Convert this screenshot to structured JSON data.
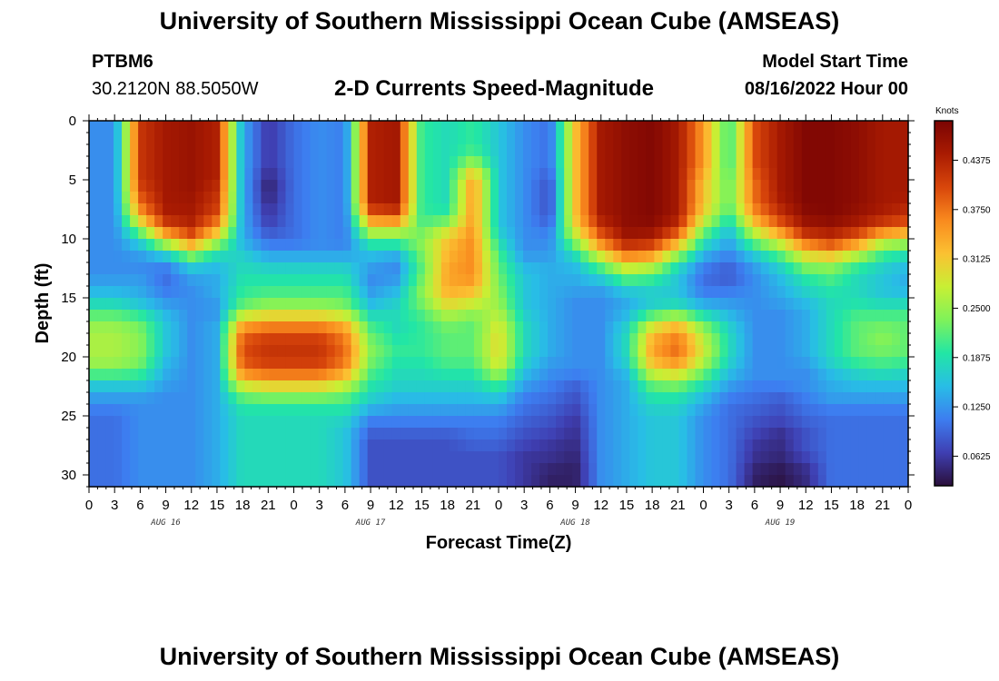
{
  "header": {
    "title": "University of Southern Mississippi Ocean Cube (AMSEAS)",
    "station_id": "PTBM6",
    "coordinates": "30.2120N  88.5050W",
    "subtitle": "2-D Currents Speed-Magnitude",
    "model_start_label": "Model Start Time",
    "model_start_value": "08/16/2022 Hour 00"
  },
  "footer": {
    "title": "University of Southern Mississippi Ocean Cube (AMSEAS)"
  },
  "colors": {
    "background": "#ffffff",
    "colormap": [
      "#2a0f3a",
      "#3f3fb2",
      "#3d7df0",
      "#28bde6",
      "#22e6a5",
      "#7ff25a",
      "#c8ef34",
      "#fbc132",
      "#f98a1e",
      "#d8460b",
      "#a91b02",
      "#7a0403"
    ]
  },
  "chart_data": {
    "type": "heatmap",
    "title": "2-D Currents Speed-Magnitude",
    "xlabel": "Forecast Time(Z)",
    "ylabel": "Depth (ft)",
    "x_range_hours": [
      0,
      96
    ],
    "y_range_ft": [
      0,
      31
    ],
    "y_ticks": [
      "0",
      "5",
      "10",
      "15",
      "20",
      "25",
      "30"
    ],
    "x_tick_labels": [
      "0",
      "3",
      "6",
      "9",
      "12",
      "15",
      "18",
      "21",
      "0",
      "3",
      "6",
      "9",
      "12",
      "15",
      "18",
      "21",
      "0",
      "3",
      "6",
      "9",
      "12",
      "15",
      "18",
      "21",
      "0",
      "3",
      "6",
      "9",
      "12",
      "15",
      "18",
      "21",
      "0"
    ],
    "date_labels": [
      "AUG 16",
      "AUG 17",
      "AUG 18",
      "AUG 19"
    ],
    "colorbar": {
      "label": "Knots",
      "range": [
        0.025,
        0.4875
      ],
      "tick_labels": [
        "0.4375",
        "0.3750",
        "0.3125",
        "0.2500",
        "0.1875",
        "0.1250",
        "0.0625"
      ]
    },
    "depth_levels_ft": [
      0,
      1,
      2,
      3,
      4,
      5,
      6,
      7,
      8,
      9,
      10,
      11,
      12,
      13,
      14,
      15,
      16,
      17,
      18,
      19,
      20,
      21,
      22,
      23,
      24,
      25,
      26,
      27,
      28,
      29,
      30,
      31
    ],
    "time_hours": [
      0,
      3,
      6,
      9,
      12,
      15,
      18,
      21,
      24,
      27,
      30,
      33,
      36,
      39,
      42,
      45,
      48,
      51,
      54,
      57,
      60,
      63,
      66,
      69,
      72,
      75,
      78,
      81,
      84,
      87,
      90,
      93,
      96
    ],
    "speed_knots": [
      [
        0.12,
        0.12,
        0.42,
        0.45,
        0.46,
        0.44,
        0.14,
        0.06,
        0.1,
        0.12,
        0.11,
        0.44,
        0.45,
        0.2,
        0.18,
        0.2,
        0.16,
        0.12,
        0.1,
        0.32,
        0.45,
        0.47,
        0.48,
        0.45,
        0.35,
        0.2,
        0.4,
        0.45,
        0.48,
        0.48,
        0.47,
        0.45,
        0.45
      ],
      [
        0.12,
        0.12,
        0.42,
        0.45,
        0.46,
        0.44,
        0.14,
        0.06,
        0.1,
        0.12,
        0.11,
        0.44,
        0.45,
        0.2,
        0.18,
        0.2,
        0.16,
        0.12,
        0.1,
        0.32,
        0.45,
        0.47,
        0.48,
        0.45,
        0.35,
        0.2,
        0.4,
        0.45,
        0.48,
        0.48,
        0.47,
        0.45,
        0.45
      ],
      [
        0.12,
        0.12,
        0.42,
        0.45,
        0.46,
        0.44,
        0.14,
        0.06,
        0.1,
        0.12,
        0.11,
        0.44,
        0.45,
        0.2,
        0.18,
        0.2,
        0.16,
        0.12,
        0.1,
        0.32,
        0.45,
        0.47,
        0.48,
        0.45,
        0.35,
        0.2,
        0.4,
        0.45,
        0.48,
        0.48,
        0.47,
        0.45,
        0.45
      ],
      [
        0.12,
        0.12,
        0.42,
        0.45,
        0.46,
        0.44,
        0.14,
        0.06,
        0.1,
        0.12,
        0.11,
        0.44,
        0.45,
        0.2,
        0.18,
        0.22,
        0.16,
        0.12,
        0.1,
        0.32,
        0.45,
        0.47,
        0.48,
        0.45,
        0.35,
        0.2,
        0.4,
        0.45,
        0.48,
        0.48,
        0.47,
        0.45,
        0.45
      ],
      [
        0.12,
        0.12,
        0.42,
        0.45,
        0.46,
        0.44,
        0.14,
        0.06,
        0.1,
        0.12,
        0.11,
        0.44,
        0.45,
        0.2,
        0.18,
        0.28,
        0.16,
        0.12,
        0.1,
        0.32,
        0.45,
        0.47,
        0.48,
        0.45,
        0.35,
        0.2,
        0.4,
        0.45,
        0.48,
        0.48,
        0.47,
        0.45,
        0.45
      ],
      [
        0.12,
        0.12,
        0.42,
        0.45,
        0.46,
        0.44,
        0.14,
        0.04,
        0.1,
        0.12,
        0.11,
        0.44,
        0.45,
        0.2,
        0.18,
        0.35,
        0.16,
        0.12,
        0.08,
        0.32,
        0.45,
        0.47,
        0.48,
        0.45,
        0.32,
        0.22,
        0.38,
        0.45,
        0.48,
        0.48,
        0.47,
        0.45,
        0.45
      ],
      [
        0.12,
        0.12,
        0.4,
        0.45,
        0.46,
        0.42,
        0.14,
        0.04,
        0.1,
        0.12,
        0.11,
        0.44,
        0.45,
        0.2,
        0.18,
        0.35,
        0.16,
        0.12,
        0.08,
        0.32,
        0.45,
        0.47,
        0.48,
        0.45,
        0.32,
        0.22,
        0.38,
        0.45,
        0.48,
        0.48,
        0.47,
        0.45,
        0.45
      ],
      [
        0.12,
        0.12,
        0.38,
        0.45,
        0.45,
        0.42,
        0.14,
        0.05,
        0.1,
        0.12,
        0.11,
        0.44,
        0.45,
        0.2,
        0.18,
        0.35,
        0.16,
        0.12,
        0.08,
        0.32,
        0.45,
        0.47,
        0.48,
        0.45,
        0.32,
        0.22,
        0.38,
        0.44,
        0.48,
        0.48,
        0.47,
        0.45,
        0.44
      ],
      [
        0.12,
        0.12,
        0.34,
        0.44,
        0.45,
        0.4,
        0.14,
        0.06,
        0.1,
        0.12,
        0.11,
        0.38,
        0.4,
        0.2,
        0.2,
        0.35,
        0.16,
        0.12,
        0.08,
        0.32,
        0.45,
        0.47,
        0.48,
        0.45,
        0.3,
        0.2,
        0.35,
        0.42,
        0.47,
        0.48,
        0.46,
        0.44,
        0.42
      ],
      [
        0.12,
        0.12,
        0.26,
        0.4,
        0.43,
        0.35,
        0.14,
        0.07,
        0.1,
        0.12,
        0.11,
        0.3,
        0.3,
        0.22,
        0.26,
        0.35,
        0.16,
        0.12,
        0.1,
        0.3,
        0.42,
        0.47,
        0.47,
        0.42,
        0.25,
        0.16,
        0.3,
        0.38,
        0.45,
        0.46,
        0.44,
        0.4,
        0.38
      ],
      [
        0.12,
        0.12,
        0.18,
        0.3,
        0.38,
        0.28,
        0.14,
        0.1,
        0.1,
        0.12,
        0.11,
        0.22,
        0.22,
        0.24,
        0.32,
        0.36,
        0.18,
        0.12,
        0.12,
        0.26,
        0.38,
        0.45,
        0.44,
        0.36,
        0.2,
        0.14,
        0.24,
        0.3,
        0.4,
        0.42,
        0.38,
        0.3,
        0.28
      ],
      [
        0.12,
        0.12,
        0.14,
        0.2,
        0.28,
        0.2,
        0.16,
        0.12,
        0.12,
        0.12,
        0.12,
        0.16,
        0.16,
        0.24,
        0.32,
        0.36,
        0.2,
        0.12,
        0.12,
        0.2,
        0.32,
        0.4,
        0.38,
        0.28,
        0.16,
        0.12,
        0.18,
        0.24,
        0.32,
        0.36,
        0.3,
        0.22,
        0.2
      ],
      [
        0.12,
        0.12,
        0.12,
        0.12,
        0.18,
        0.16,
        0.18,
        0.16,
        0.16,
        0.16,
        0.16,
        0.14,
        0.12,
        0.22,
        0.34,
        0.36,
        0.22,
        0.14,
        0.14,
        0.16,
        0.24,
        0.32,
        0.3,
        0.2,
        0.12,
        0.1,
        0.14,
        0.18,
        0.26,
        0.26,
        0.22,
        0.18,
        0.16
      ],
      [
        0.12,
        0.12,
        0.12,
        0.1,
        0.14,
        0.14,
        0.18,
        0.18,
        0.18,
        0.18,
        0.18,
        0.12,
        0.12,
        0.22,
        0.34,
        0.36,
        0.22,
        0.16,
        0.14,
        0.14,
        0.18,
        0.24,
        0.22,
        0.16,
        0.1,
        0.08,
        0.12,
        0.16,
        0.2,
        0.22,
        0.18,
        0.16,
        0.14
      ],
      [
        0.14,
        0.14,
        0.14,
        0.1,
        0.12,
        0.14,
        0.2,
        0.2,
        0.2,
        0.2,
        0.2,
        0.12,
        0.14,
        0.24,
        0.34,
        0.34,
        0.24,
        0.16,
        0.14,
        0.14,
        0.14,
        0.18,
        0.18,
        0.16,
        0.1,
        0.1,
        0.12,
        0.14,
        0.18,
        0.2,
        0.18,
        0.16,
        0.14
      ],
      [
        0.16,
        0.16,
        0.14,
        0.12,
        0.12,
        0.14,
        0.2,
        0.22,
        0.22,
        0.22,
        0.22,
        0.14,
        0.16,
        0.24,
        0.32,
        0.3,
        0.24,
        0.16,
        0.14,
        0.12,
        0.12,
        0.14,
        0.16,
        0.16,
        0.12,
        0.12,
        0.12,
        0.14,
        0.16,
        0.18,
        0.18,
        0.16,
        0.16
      ],
      [
        0.2,
        0.2,
        0.18,
        0.14,
        0.12,
        0.12,
        0.24,
        0.26,
        0.26,
        0.26,
        0.24,
        0.16,
        0.18,
        0.22,
        0.28,
        0.26,
        0.26,
        0.16,
        0.14,
        0.12,
        0.12,
        0.14,
        0.18,
        0.2,
        0.16,
        0.14,
        0.12,
        0.12,
        0.14,
        0.18,
        0.2,
        0.2,
        0.2
      ],
      [
        0.24,
        0.24,
        0.22,
        0.16,
        0.12,
        0.14,
        0.32,
        0.34,
        0.34,
        0.34,
        0.32,
        0.2,
        0.18,
        0.2,
        0.24,
        0.22,
        0.28,
        0.18,
        0.14,
        0.12,
        0.12,
        0.16,
        0.26,
        0.3,
        0.22,
        0.16,
        0.12,
        0.12,
        0.14,
        0.18,
        0.22,
        0.22,
        0.22
      ],
      [
        0.26,
        0.26,
        0.24,
        0.16,
        0.12,
        0.14,
        0.38,
        0.4,
        0.4,
        0.4,
        0.36,
        0.22,
        0.18,
        0.2,
        0.22,
        0.22,
        0.3,
        0.18,
        0.14,
        0.12,
        0.12,
        0.18,
        0.32,
        0.36,
        0.26,
        0.18,
        0.12,
        0.12,
        0.14,
        0.18,
        0.22,
        0.24,
        0.22
      ],
      [
        0.26,
        0.26,
        0.24,
        0.16,
        0.12,
        0.14,
        0.4,
        0.42,
        0.42,
        0.42,
        0.38,
        0.24,
        0.2,
        0.2,
        0.22,
        0.22,
        0.3,
        0.18,
        0.14,
        0.12,
        0.12,
        0.18,
        0.34,
        0.38,
        0.28,
        0.18,
        0.12,
        0.12,
        0.14,
        0.18,
        0.22,
        0.24,
        0.22
      ],
      [
        0.26,
        0.26,
        0.24,
        0.16,
        0.12,
        0.14,
        0.4,
        0.42,
        0.42,
        0.42,
        0.38,
        0.24,
        0.2,
        0.2,
        0.22,
        0.22,
        0.3,
        0.18,
        0.14,
        0.12,
        0.12,
        0.18,
        0.34,
        0.38,
        0.28,
        0.18,
        0.12,
        0.12,
        0.14,
        0.18,
        0.22,
        0.22,
        0.22
      ],
      [
        0.24,
        0.24,
        0.22,
        0.14,
        0.12,
        0.14,
        0.38,
        0.4,
        0.4,
        0.4,
        0.36,
        0.22,
        0.18,
        0.18,
        0.2,
        0.2,
        0.28,
        0.16,
        0.12,
        0.12,
        0.12,
        0.16,
        0.3,
        0.32,
        0.24,
        0.16,
        0.12,
        0.12,
        0.12,
        0.16,
        0.18,
        0.2,
        0.18
      ],
      [
        0.18,
        0.18,
        0.18,
        0.14,
        0.12,
        0.14,
        0.32,
        0.34,
        0.34,
        0.34,
        0.3,
        0.2,
        0.18,
        0.18,
        0.18,
        0.18,
        0.22,
        0.14,
        0.12,
        0.1,
        0.12,
        0.14,
        0.24,
        0.26,
        0.2,
        0.14,
        0.12,
        0.12,
        0.12,
        0.14,
        0.16,
        0.16,
        0.16
      ],
      [
        0.14,
        0.14,
        0.14,
        0.12,
        0.12,
        0.14,
        0.24,
        0.26,
        0.26,
        0.26,
        0.24,
        0.18,
        0.16,
        0.16,
        0.16,
        0.16,
        0.18,
        0.12,
        0.1,
        0.08,
        0.12,
        0.14,
        0.2,
        0.2,
        0.16,
        0.12,
        0.1,
        0.1,
        0.12,
        0.14,
        0.14,
        0.14,
        0.14
      ],
      [
        0.12,
        0.12,
        0.12,
        0.12,
        0.12,
        0.14,
        0.2,
        0.2,
        0.2,
        0.2,
        0.2,
        0.16,
        0.14,
        0.14,
        0.14,
        0.14,
        0.14,
        0.1,
        0.1,
        0.08,
        0.12,
        0.14,
        0.18,
        0.18,
        0.14,
        0.1,
        0.1,
        0.08,
        0.1,
        0.12,
        0.12,
        0.12,
        0.12
      ],
      [
        0.1,
        0.1,
        0.12,
        0.12,
        0.12,
        0.14,
        0.18,
        0.18,
        0.18,
        0.18,
        0.18,
        0.12,
        0.12,
        0.12,
        0.12,
        0.12,
        0.12,
        0.1,
        0.08,
        0.06,
        0.12,
        0.14,
        0.16,
        0.16,
        0.12,
        0.1,
        0.08,
        0.08,
        0.1,
        0.1,
        0.1,
        0.1,
        0.1
      ],
      [
        0.1,
        0.1,
        0.12,
        0.12,
        0.12,
        0.14,
        0.18,
        0.18,
        0.18,
        0.18,
        0.16,
        0.1,
        0.1,
        0.1,
        0.1,
        0.1,
        0.1,
        0.08,
        0.08,
        0.06,
        0.12,
        0.14,
        0.16,
        0.16,
        0.12,
        0.1,
        0.08,
        0.06,
        0.08,
        0.1,
        0.1,
        0.1,
        0.1
      ],
      [
        0.1,
        0.1,
        0.12,
        0.12,
        0.12,
        0.14,
        0.18,
        0.18,
        0.18,
        0.18,
        0.16,
        0.08,
        0.08,
        0.08,
        0.08,
        0.1,
        0.1,
        0.08,
        0.06,
        0.05,
        0.12,
        0.14,
        0.16,
        0.16,
        0.12,
        0.1,
        0.06,
        0.05,
        0.08,
        0.1,
        0.1,
        0.1,
        0.1
      ],
      [
        0.1,
        0.1,
        0.12,
        0.12,
        0.12,
        0.14,
        0.18,
        0.18,
        0.18,
        0.18,
        0.16,
        0.08,
        0.08,
        0.08,
        0.08,
        0.08,
        0.08,
        0.06,
        0.06,
        0.05,
        0.12,
        0.14,
        0.16,
        0.16,
        0.12,
        0.1,
        0.06,
        0.05,
        0.08,
        0.1,
        0.1,
        0.1,
        0.1
      ],
      [
        0.1,
        0.1,
        0.12,
        0.12,
        0.12,
        0.14,
        0.18,
        0.18,
        0.18,
        0.18,
        0.16,
        0.08,
        0.08,
        0.08,
        0.08,
        0.08,
        0.08,
        0.06,
        0.05,
        0.04,
        0.12,
        0.14,
        0.16,
        0.16,
        0.12,
        0.1,
        0.05,
        0.04,
        0.06,
        0.1,
        0.1,
        0.1,
        0.1
      ],
      [
        0.1,
        0.1,
        0.12,
        0.12,
        0.12,
        0.14,
        0.18,
        0.18,
        0.18,
        0.18,
        0.16,
        0.08,
        0.08,
        0.08,
        0.08,
        0.08,
        0.08,
        0.06,
        0.04,
        0.04,
        0.12,
        0.14,
        0.16,
        0.16,
        0.12,
        0.1,
        0.04,
        0.03,
        0.05,
        0.1,
        0.1,
        0.1,
        0.1
      ],
      [
        0.1,
        0.1,
        0.12,
        0.12,
        0.12,
        0.14,
        0.18,
        0.18,
        0.18,
        0.18,
        0.16,
        0.08,
        0.08,
        0.08,
        0.08,
        0.08,
        0.08,
        0.06,
        0.04,
        0.04,
        0.12,
        0.14,
        0.16,
        0.16,
        0.12,
        0.1,
        0.04,
        0.03,
        0.05,
        0.1,
        0.1,
        0.1,
        0.1
      ]
    ]
  }
}
